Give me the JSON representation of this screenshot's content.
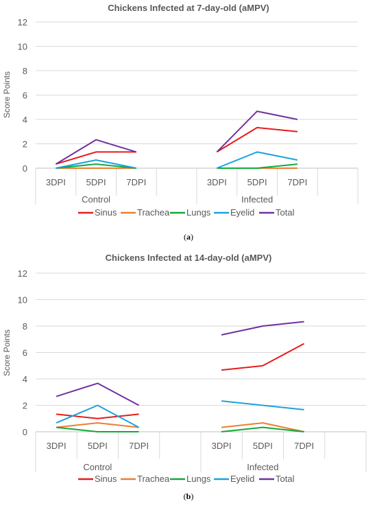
{
  "chart_data": [
    {
      "type": "line",
      "title": "Chickens Infected at 7-day-old (aMPV)",
      "ylabel": "Score Points",
      "xlabel": "",
      "ylim": [
        0,
        12
      ],
      "yticks": [
        0,
        2,
        4,
        6,
        8,
        10,
        12
      ],
      "grid": true,
      "legend": "bottom",
      "groups": [
        {
          "label": "Control",
          "categories": [
            "3DPI",
            "5DPI",
            "7DPI"
          ]
        },
        {
          "label": "Infected",
          "categories": [
            "3DPI",
            "5DPI",
            "7DPI"
          ]
        }
      ],
      "series": [
        {
          "name": "Sinus",
          "color": "#e8191a",
          "groups": [
            [
              0.33,
              1.33,
              1.33
            ],
            [
              1.33,
              3.33,
              3.0
            ]
          ]
        },
        {
          "name": "Trachea",
          "color": "#ed7d31",
          "groups": [
            [
              0.0,
              0.0,
              0.0
            ],
            [
              0.0,
              0.0,
              0.0
            ]
          ]
        },
        {
          "name": "Lungs",
          "color": "#12a83a",
          "groups": [
            [
              0.0,
              0.33,
              0.0
            ],
            [
              0.0,
              0.0,
              0.33
            ]
          ]
        },
        {
          "name": "Eyelid",
          "color": "#1aa3d9",
          "groups": [
            [
              0.0,
              0.67,
              0.0
            ],
            [
              0.0,
              1.33,
              0.67
            ]
          ]
        },
        {
          "name": "Total",
          "color": "#7030a0",
          "groups": [
            [
              0.33,
              2.33,
              1.33
            ],
            [
              1.33,
              4.67,
              4.0
            ]
          ]
        }
      ]
    },
    {
      "type": "line",
      "title": "Chickens Infected at 14-day-old (aMPV)",
      "ylabel": "Score Points",
      "xlabel": "",
      "ylim": [
        0,
        12
      ],
      "yticks": [
        0,
        2,
        4,
        6,
        8,
        10,
        12
      ],
      "grid": true,
      "legend": "bottom",
      "groups": [
        {
          "label": "Control",
          "categories": [
            "3DPI",
            "5DPI",
            "7DPI"
          ]
        },
        {
          "label": "Infected",
          "categories": [
            "3DPI",
            "5DPI",
            "7DPI"
          ]
        }
      ],
      "series": [
        {
          "name": "Sinus",
          "color": "#e8191a",
          "groups": [
            [
              1.33,
              1.0,
              1.33
            ],
            [
              4.67,
              5.0,
              6.67
            ]
          ]
        },
        {
          "name": "Trachea",
          "color": "#ed7d31",
          "groups": [
            [
              0.33,
              0.67,
              0.33
            ],
            [
              0.33,
              0.67,
              0.0
            ]
          ]
        },
        {
          "name": "Lungs",
          "color": "#12a83a",
          "groups": [
            [
              0.33,
              0.0,
              0.0
            ],
            [
              0.0,
              0.33,
              0.0
            ]
          ]
        },
        {
          "name": "Eyelid",
          "color": "#1aa3d9",
          "groups": [
            [
              0.67,
              2.0,
              0.33
            ],
            [
              2.33,
              2.0,
              1.67
            ]
          ]
        },
        {
          "name": "Total",
          "color": "#7030a0",
          "groups": [
            [
              2.67,
              3.67,
              2.0
            ],
            [
              7.33,
              8.0,
              8.33
            ]
          ]
        }
      ]
    }
  ],
  "captions": [
    {
      "label": "(a)",
      "letter": "a"
    },
    {
      "label": "(b)",
      "letter": "b"
    }
  ]
}
